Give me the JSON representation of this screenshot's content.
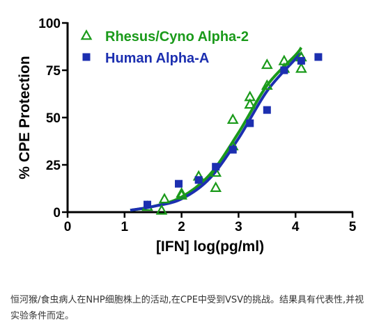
{
  "caption": "恒河猴/食虫病人在NHP细胞株上的活动,在CPE中受到VSV的挑战。结果具有代表性,并视实验条件而定。",
  "chart_data": {
    "type": "scatter",
    "title": "",
    "xlabel": "[IFN] log(pg/ml)",
    "ylabel": "% CPE Protection",
    "xlim": [
      0,
      5
    ],
    "ylim": [
      0,
      100
    ],
    "x_ticks": [
      0,
      1,
      2,
      3,
      4,
      5
    ],
    "y_ticks": [
      0,
      25,
      50,
      75,
      100
    ],
    "grid": false,
    "legend_position": "top-left",
    "series": [
      {
        "name": "Rhesus/Cyno Alpha-2",
        "color": "#1a9a1a",
        "marker": "open-triangle",
        "points": [
          [
            1.4,
            3
          ],
          [
            1.65,
            1
          ],
          [
            1.7,
            7
          ],
          [
            2.0,
            10
          ],
          [
            2.0,
            9
          ],
          [
            2.3,
            19
          ],
          [
            2.6,
            21
          ],
          [
            2.6,
            13
          ],
          [
            2.9,
            35
          ],
          [
            2.9,
            49
          ],
          [
            3.2,
            61
          ],
          [
            3.2,
            57
          ],
          [
            3.5,
            78
          ],
          [
            3.5,
            67
          ],
          [
            3.8,
            80
          ],
          [
            3.8,
            76
          ],
          [
            4.1,
            82
          ],
          [
            4.1,
            76
          ]
        ],
        "fit": [
          [
            1.1,
            1
          ],
          [
            1.5,
            3
          ],
          [
            2.0,
            8
          ],
          [
            2.5,
            20
          ],
          [
            3.0,
            42
          ],
          [
            3.5,
            67
          ],
          [
            4.0,
            83
          ],
          [
            4.1,
            87
          ]
        ]
      },
      {
        "name": "Human Alpha-A",
        "color": "#1c2fb0",
        "marker": "filled-square",
        "points": [
          [
            1.4,
            4
          ],
          [
            1.95,
            15
          ],
          [
            2.3,
            17
          ],
          [
            2.6,
            24
          ],
          [
            2.9,
            33
          ],
          [
            3.2,
            47
          ],
          [
            3.5,
            54
          ],
          [
            3.8,
            75
          ],
          [
            4.1,
            80
          ],
          [
            4.4,
            82
          ]
        ],
        "fit": [
          [
            1.1,
            1
          ],
          [
            1.5,
            3
          ],
          [
            2.0,
            7
          ],
          [
            2.5,
            18
          ],
          [
            3.0,
            39
          ],
          [
            3.5,
            64
          ],
          [
            4.0,
            81
          ],
          [
            4.1,
            84
          ]
        ]
      }
    ]
  }
}
